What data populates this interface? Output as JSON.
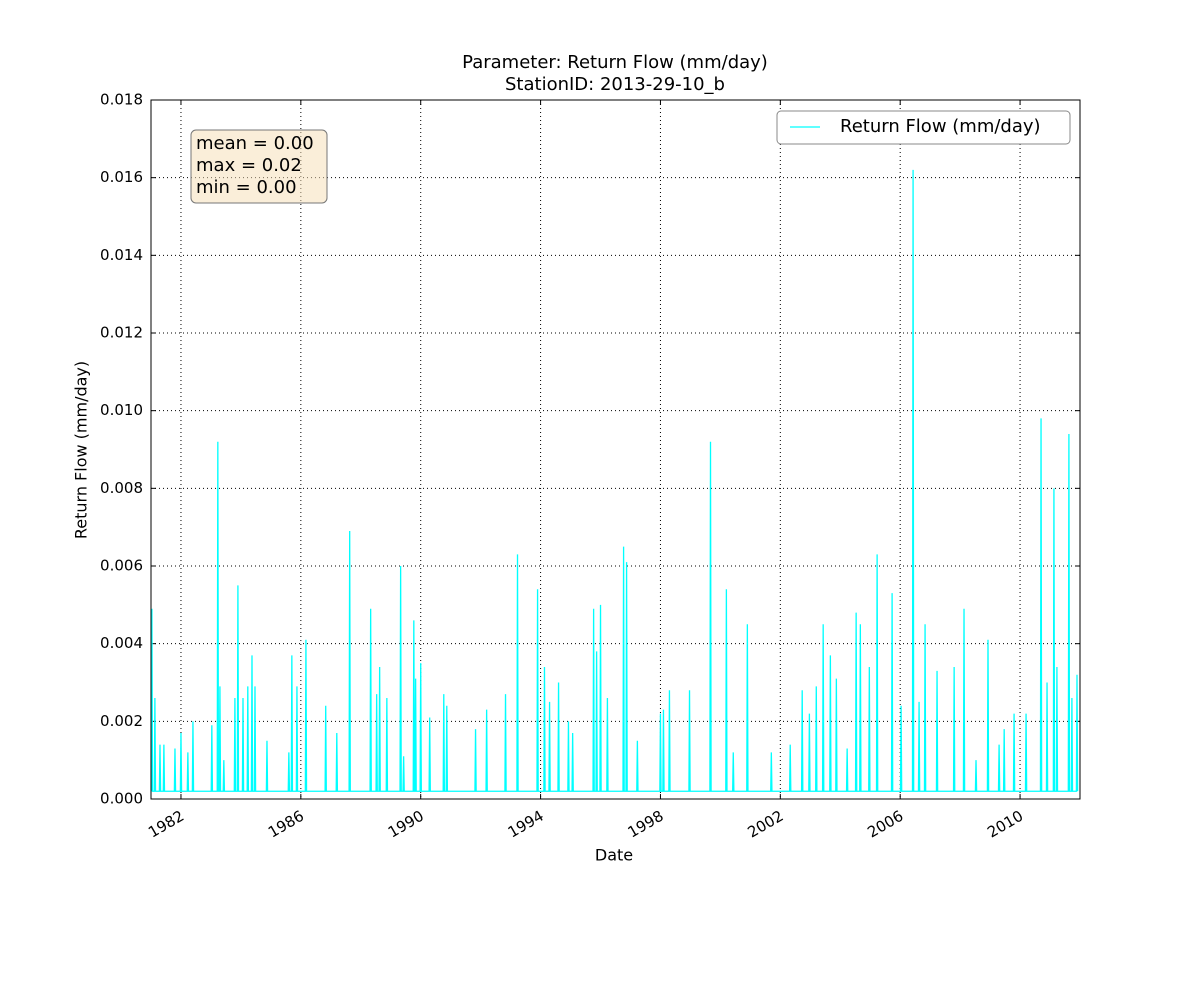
{
  "chart_data": {
    "type": "line",
    "title": [
      "Parameter: Return Flow (mm/day)",
      "StationID: 2013-29-10_b"
    ],
    "x_label": "Date",
    "y_label": "Return Flow (mm/day)",
    "stats_box": [
      "mean = 0.00",
      "max = 0.02",
      "min = 0.00"
    ],
    "legend": "upper right",
    "grid": true,
    "xlim": [
      1981,
      2012
    ],
    "xticks": [
      1982,
      1986,
      1990,
      1994,
      1998,
      2002,
      2006,
      2010
    ],
    "ylim": [
      0,
      0.018
    ],
    "yticks": [
      {
        "value": 0,
        "label": "0.000"
      },
      {
        "value": 0.002,
        "label": "0.002"
      },
      {
        "value": 0.004,
        "label": "0.004"
      },
      {
        "value": 0.006,
        "label": "0.006"
      },
      {
        "value": 0.008,
        "label": "0.008"
      },
      {
        "value": 0.01,
        "label": "0.010"
      },
      {
        "value": 0.012,
        "label": "0.012"
      },
      {
        "value": 0.014,
        "label": "0.014"
      },
      {
        "value": 0.016,
        "label": "0.016"
      },
      {
        "value": 0.018,
        "label": "0.018"
      }
    ],
    "x": [
      1981.01,
      1981.03,
      1981.05,
      1981.11,
      1981.13,
      1981.15,
      1981.28,
      1981.3,
      1981.32,
      1981.41,
      1981.43,
      1981.45,
      1981.78,
      1981.8,
      1981.82,
      1981.98,
      1982.0,
      1982.02,
      1982.21,
      1982.23,
      1982.25,
      1982.38,
      1982.4,
      1982.42,
      1983.01,
      1983.03,
      1983.05,
      1983.21,
      1983.23,
      1983.25,
      1983.28,
      1983.3,
      1983.32,
      1983.41,
      1983.43,
      1983.45,
      1983.78,
      1983.8,
      1983.82,
      1983.88,
      1983.9,
      1983.92,
      1984.05,
      1984.07,
      1984.09,
      1984.21,
      1984.23,
      1984.25,
      1984.35,
      1984.37,
      1984.39,
      1984.45,
      1984.47,
      1984.49,
      1984.85,
      1984.87,
      1984.89,
      1985.58,
      1985.6,
      1985.62,
      1985.68,
      1985.7,
      1985.72,
      1985.85,
      1985.87,
      1985.89,
      1986.15,
      1986.17,
      1986.19,
      1986.81,
      1986.83,
      1986.85,
      1987.18,
      1987.2,
      1987.22,
      1987.61,
      1987.63,
      1987.65,
      1988.31,
      1988.33,
      1988.35,
      1988.51,
      1988.53,
      1988.55,
      1988.61,
      1988.63,
      1988.65,
      1988.85,
      1988.87,
      1988.89,
      1989.31,
      1989.33,
      1989.35,
      1989.41,
      1989.43,
      1989.45,
      1989.75,
      1989.77,
      1989.79,
      1989.81,
      1989.83,
      1989.85,
      1989.98,
      1990.0,
      1990.02,
      1990.28,
      1990.3,
      1990.32,
      1990.75,
      1990.77,
      1990.79,
      1990.85,
      1990.87,
      1990.89,
      1991.81,
      1991.83,
      1991.85,
      1992.18,
      1992.2,
      1992.22,
      1992.81,
      1992.83,
      1992.85,
      1993.21,
      1993.23,
      1993.25,
      1993.88,
      1993.9,
      1993.92,
      1994.11,
      1994.13,
      1994.15,
      1994.28,
      1994.3,
      1994.32,
      1994.58,
      1994.6,
      1994.62,
      1994.91,
      1994.93,
      1994.95,
      1995.05,
      1995.07,
      1995.09,
      1995.75,
      1995.77,
      1995.79,
      1995.85,
      1995.87,
      1995.89,
      1995.98,
      1996.0,
      1996.02,
      1996.21,
      1996.23,
      1996.25,
      1996.75,
      1996.77,
      1996.79,
      1996.85,
      1996.87,
      1996.89,
      1997.21,
      1997.23,
      1997.25,
      1997.98,
      1998.0,
      1998.02,
      1998.08,
      1998.1,
      1998.12,
      1998.28,
      1998.3,
      1998.32,
      1998.95,
      1998.97,
      1998.99,
      1999.65,
      1999.67,
      1999.69,
      2000.18,
      2000.2,
      2000.22,
      2000.41,
      2000.43,
      2000.45,
      2000.88,
      2000.9,
      2000.92,
      2001.68,
      2001.7,
      2001.72,
      2002.31,
      2002.33,
      2002.35,
      2002.71,
      2002.73,
      2002.75,
      2002.95,
      2002.97,
      2002.99,
      2003.18,
      2003.2,
      2003.22,
      2003.41,
      2003.43,
      2003.45,
      2003.65,
      2003.67,
      2003.69,
      2003.85,
      2003.87,
      2003.89,
      2004.21,
      2004.23,
      2004.25,
      2004.51,
      2004.53,
      2004.55,
      2004.65,
      2004.67,
      2004.69,
      2004.95,
      2004.97,
      2004.99,
      2005.21,
      2005.23,
      2005.25,
      2005.71,
      2005.73,
      2005.75,
      2006.01,
      2006.03,
      2006.05,
      2006.41,
      2006.43,
      2006.45,
      2006.61,
      2006.63,
      2006.65,
      2006.81,
      2006.83,
      2006.85,
      2007.21,
      2007.23,
      2007.25,
      2007.78,
      2007.8,
      2007.82,
      2008.11,
      2008.13,
      2008.15,
      2008.51,
      2008.53,
      2008.55,
      2008.91,
      2008.93,
      2008.95,
      2009.28,
      2009.3,
      2009.32,
      2009.45,
      2009.47,
      2009.49,
      2009.78,
      2009.8,
      2009.82,
      2010.18,
      2010.2,
      2010.22,
      2010.68,
      2010.7,
      2010.72,
      2010.88,
      2010.9,
      2010.92,
      2011.11,
      2011.13,
      2011.15,
      2011.21,
      2011.23,
      2011.25,
      2011.61,
      2011.63,
      2011.65,
      2011.71,
      2011.73,
      2011.75,
      2011.88,
      2011.9,
      2011.92
    ],
    "series": [
      {
        "name": "Return Flow (mm/day)",
        "color": "#00ffff",
        "values": [
          0.0002,
          0.0049,
          0.0002,
          0.0002,
          0.0026,
          0.0002,
          0.0002,
          0.0014,
          0.0002,
          0.0002,
          0.0014,
          0.0002,
          0.0002,
          0.0013,
          0.0002,
          0.0002,
          0.0017,
          0.0002,
          0.0002,
          0.0012,
          0.0002,
          0.0002,
          0.002,
          0.0002,
          0.0002,
          0.0019,
          0.0002,
          0.0002,
          0.0092,
          0.0002,
          0.0002,
          0.0029,
          0.0002,
          0.0002,
          0.001,
          0.0002,
          0.0002,
          0.0026,
          0.0002,
          0.0002,
          0.0055,
          0.0002,
          0.0002,
          0.0026,
          0.0002,
          0.0002,
          0.0029,
          0.0002,
          0.0002,
          0.0037,
          0.0002,
          0.0002,
          0.0029,
          0.0002,
          0.0002,
          0.0015,
          0.0002,
          0.0002,
          0.0012,
          0.0002,
          0.0002,
          0.0037,
          0.0002,
          0.0002,
          0.0029,
          0.0002,
          0.0002,
          0.0041,
          0.0002,
          0.0002,
          0.0024,
          0.0002,
          0.0002,
          0.0017,
          0.0002,
          0.0002,
          0.0069,
          0.0002,
          0.0002,
          0.0049,
          0.0002,
          0.0002,
          0.0027,
          0.0002,
          0.0002,
          0.0034,
          0.0002,
          0.0002,
          0.0026,
          0.0002,
          0.0002,
          0.006,
          0.0002,
          0.0002,
          0.0011,
          0.0002,
          0.0002,
          0.0046,
          0.0002,
          0.0002,
          0.0031,
          0.0002,
          0.0002,
          0.0035,
          0.0002,
          0.0002,
          0.0021,
          0.0002,
          0.0002,
          0.0027,
          0.0002,
          0.0002,
          0.0024,
          0.0002,
          0.0002,
          0.0018,
          0.0002,
          0.0002,
          0.0023,
          0.0002,
          0.0002,
          0.0027,
          0.0002,
          0.0002,
          0.0063,
          0.0002,
          0.0002,
          0.0054,
          0.0002,
          0.0002,
          0.0034,
          0.0002,
          0.0002,
          0.0025,
          0.0002,
          0.0002,
          0.003,
          0.0002,
          0.0002,
          0.002,
          0.0002,
          0.0002,
          0.0017,
          0.0002,
          0.0002,
          0.0049,
          0.0002,
          0.0002,
          0.0038,
          0.0002,
          0.0002,
          0.005,
          0.0002,
          0.0002,
          0.0026,
          0.0002,
          0.0002,
          0.0065,
          0.0002,
          0.0002,
          0.0061,
          0.0002,
          0.0002,
          0.0015,
          0.0002,
          0.0002,
          0.0022,
          0.0002,
          0.0002,
          0.0023,
          0.0002,
          0.0002,
          0.0028,
          0.0002,
          0.0002,
          0.0028,
          0.0002,
          0.0002,
          0.0092,
          0.0002,
          0.0002,
          0.0054,
          0.0002,
          0.0002,
          0.0012,
          0.0002,
          0.0002,
          0.0045,
          0.0002,
          0.0002,
          0.0012,
          0.0002,
          0.0002,
          0.0014,
          0.0002,
          0.0002,
          0.0028,
          0.0002,
          0.0002,
          0.0022,
          0.0002,
          0.0002,
          0.0029,
          0.0002,
          0.0002,
          0.0045,
          0.0002,
          0.0002,
          0.0037,
          0.0002,
          0.0002,
          0.0031,
          0.0002,
          0.0002,
          0.0013,
          0.0002,
          0.0002,
          0.0048,
          0.0002,
          0.0002,
          0.0045,
          0.0002,
          0.0002,
          0.0034,
          0.0002,
          0.0002,
          0.0063,
          0.0002,
          0.0002,
          0.0053,
          0.0002,
          0.0002,
          0.0024,
          0.0002,
          0.0002,
          0.0162,
          0.0002,
          0.0002,
          0.0025,
          0.0002,
          0.0002,
          0.0045,
          0.0002,
          0.0002,
          0.0033,
          0.0002,
          0.0002,
          0.0034,
          0.0002,
          0.0002,
          0.0049,
          0.0002,
          0.0002,
          0.001,
          0.0002,
          0.0002,
          0.0041,
          0.0002,
          0.0002,
          0.0014,
          0.0002,
          0.0002,
          0.0018,
          0.0002,
          0.0002,
          0.0022,
          0.0002,
          0.0002,
          0.0022,
          0.0002,
          0.0002,
          0.0098,
          0.0002,
          0.0002,
          0.003,
          0.0002,
          0.0002,
          0.008,
          0.0002,
          0.0002,
          0.0034,
          0.0002,
          0.0002,
          0.0094,
          0.0002,
          0.0002,
          0.0026,
          0.0002,
          0.0002,
          0.0032,
          0.0002
        ]
      }
    ]
  }
}
